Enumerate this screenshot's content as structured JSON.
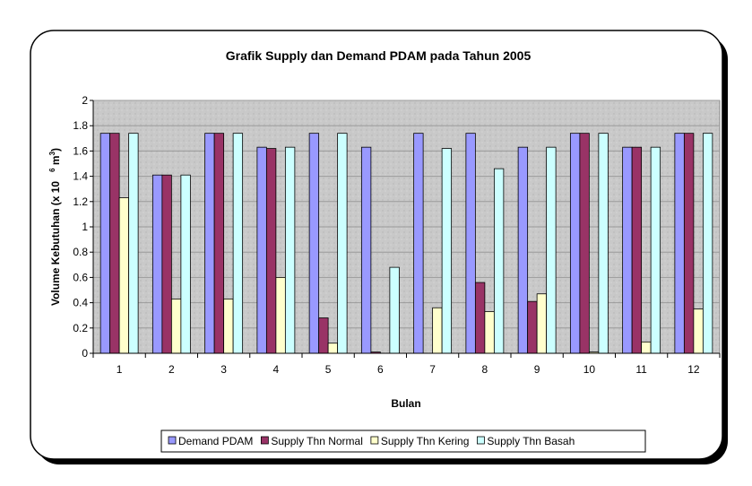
{
  "chart_data": {
    "type": "bar",
    "title": "Grafik Supply dan Demand PDAM pada Tahun 2005",
    "xlabel": "Bulan",
    "ylabel": "Volume Kebutuhan (x 10",
    "ylabel_sup": "6",
    "ylabel_unit": " m",
    "ylabel_sup2": "3",
    "ylabel_end": ")",
    "categories": [
      "1",
      "2",
      "3",
      "4",
      "5",
      "6",
      "7",
      "8",
      "9",
      "10",
      "11",
      "12"
    ],
    "ylim": [
      0,
      2
    ],
    "yticks": [
      "0",
      "0.2",
      "0.4",
      "0.6",
      "0.8",
      "1",
      "1.2",
      "1.4",
      "1.6",
      "1.8",
      "2"
    ],
    "grid": true,
    "legend_position": "bottom",
    "series": [
      {
        "name": "Demand PDAM",
        "color": "#9999ff",
        "values": [
          1.74,
          1.41,
          1.74,
          1.63,
          1.74,
          1.63,
          1.74,
          1.74,
          1.63,
          1.74,
          1.63,
          1.74
        ]
      },
      {
        "name": "Supply Thn Normal",
        "color": "#993366",
        "values": [
          1.74,
          1.41,
          1.74,
          1.62,
          0.28,
          0.01,
          0.0,
          0.56,
          0.41,
          1.74,
          1.63,
          1.74
        ]
      },
      {
        "name": "Supply Thn Kering",
        "color": "#ffffcc",
        "values": [
          1.23,
          0.43,
          0.43,
          0.6,
          0.08,
          0.0,
          0.36,
          0.33,
          0.47,
          0.01,
          0.09,
          0.35
        ]
      },
      {
        "name": "Supply Thn Basah",
        "color": "#ccffff",
        "values": [
          1.74,
          1.41,
          1.74,
          1.63,
          1.74,
          0.68,
          1.62,
          1.46,
          1.63,
          1.74,
          1.63,
          1.74
        ]
      }
    ]
  }
}
